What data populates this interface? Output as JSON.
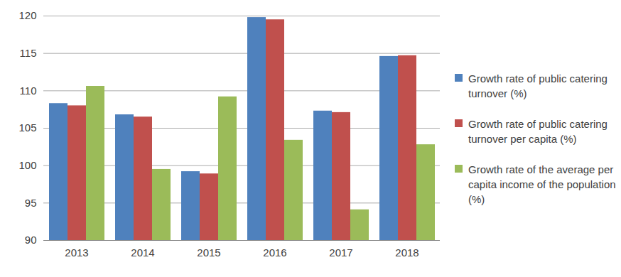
{
  "chart_data": {
    "type": "bar",
    "categories": [
      "2013",
      "2014",
      "2015",
      "2016",
      "2017",
      "2018"
    ],
    "series": [
      {
        "name": "Growth rate of public catering turnover (%)",
        "color": "#4f81bd",
        "values": [
          108.3,
          106.8,
          99.2,
          119.8,
          107.3,
          114.6
        ]
      },
      {
        "name": "Growth rate of public catering turnover per capita (%)",
        "color": "#c0504d",
        "values": [
          108.0,
          106.5,
          98.9,
          119.5,
          107.1,
          114.7
        ]
      },
      {
        "name": "Growth rate of the average per capita income of the population (%)",
        "color": "#9bbb59",
        "values": [
          110.6,
          99.5,
          109.2,
          103.4,
          94.1,
          102.8
        ]
      }
    ],
    "ylim": [
      90,
      120
    ],
    "yticks": [
      90,
      95,
      100,
      105,
      110,
      115,
      120
    ],
    "grid": true,
    "legend": "right"
  }
}
